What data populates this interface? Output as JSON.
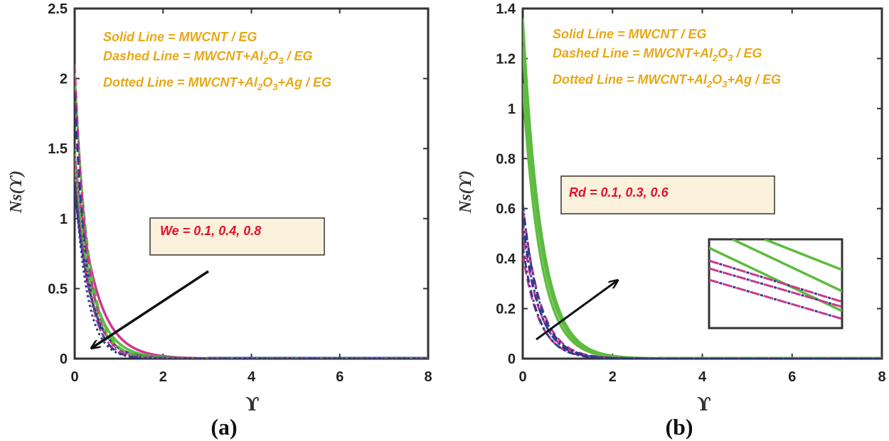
{
  "colors": {
    "solid": "#5DBB3F",
    "magenta": "#C8388E",
    "navy": "#2B3A8F",
    "legend_text": "#E8A817",
    "anno_text": "#E0112B",
    "anno_box_fill": "#FCF1DC",
    "arrow": "#111111"
  },
  "chart_data": [
    {
      "type": "line",
      "panel": "a",
      "caption": "(a)",
      "xlabel": "ϒ",
      "ylabel": "Ns(ϒ)",
      "xlim": [
        0,
        8
      ],
      "ylim": [
        0,
        2.5
      ],
      "x_ticks": [
        "0",
        "2",
        "4",
        "6",
        "8"
      ],
      "y_ticks": [
        "0",
        "0.5",
        "1",
        "1.5",
        "2",
        "2.5"
      ],
      "legend": {
        "solid": "Solid Line = MWCNT / EG",
        "dashed_prefix": "Dashed Line = MWCNT+Al",
        "dashed_sub1": "2",
        "dashed_mid": "O",
        "dashed_sub2": "3",
        "dashed_suffix": " / EG",
        "dotted_prefix": "Dotted Line = MWCNT+Al",
        "dotted_sub1": "2",
        "dotted_mid": "O",
        "dotted_sub2": "3",
        "dotted_suffix": "+Ag / EG"
      },
      "annotation": "We = 0.1, 0.4, 0.8",
      "series": [
        {
          "name": "MWCNT/EG We=0.1",
          "style": "solid",
          "color": "magenta",
          "y0": 1.45,
          "k": 2.2
        },
        {
          "name": "MWCNT/EG We=0.4",
          "style": "solid",
          "color": "green",
          "y0": 1.35,
          "k": 2.5
        },
        {
          "name": "MWCNT/EG We=0.8",
          "style": "solid",
          "color": "navy",
          "y0": 1.25,
          "k": 2.8
        },
        {
          "name": "MWCNT+Al2O3/EG We=0.1",
          "style": "dashed",
          "color": "green",
          "y0": 2.05,
          "k": 3.2
        },
        {
          "name": "MWCNT+Al2O3/EG We=0.4",
          "style": "dashed",
          "color": "magenta",
          "y0": 2.1,
          "k": 3.5
        },
        {
          "name": "MWCNT+Al2O3/EG We=0.8",
          "style": "dashed",
          "color": "navy",
          "y0": 1.9,
          "k": 3.8
        },
        {
          "name": "MWCNT+Al2O3+Ag/EG We=0.1",
          "style": "dotted",
          "color": "green",
          "y0": 1.5,
          "k": 3.0
        },
        {
          "name": "MWCNT+Al2O3+Ag/EG We=0.4",
          "style": "dotted",
          "color": "magenta",
          "y0": 1.4,
          "k": 3.3
        },
        {
          "name": "MWCNT+Al2O3+Ag/EG We=0.8",
          "style": "dotted",
          "color": "navy",
          "y0": 1.3,
          "k": 3.6
        }
      ]
    },
    {
      "type": "line",
      "panel": "b",
      "caption": "(b)",
      "xlabel": "ϒ",
      "ylabel": "Ns(ϒ)",
      "xlim": [
        0,
        8
      ],
      "ylim": [
        0,
        1.4
      ],
      "x_ticks": [
        "0",
        "2",
        "4",
        "6",
        "8"
      ],
      "y_ticks": [
        "0",
        "0.2",
        "0.4",
        "0.6",
        "0.8",
        "1",
        "1.2",
        "1.4"
      ],
      "legend": {
        "solid": "Solid Line = MWCNT / EG",
        "dashed_prefix": "Dashed Line = MWCNT+Al",
        "dashed_sub1": "2",
        "dashed_mid": "O",
        "dashed_sub2": "3",
        "dashed_suffix": " / EG",
        "dotted_prefix": "Dotted Line = MWCNT+Al",
        "dotted_sub1": "2",
        "dotted_mid": "O",
        "dotted_sub2": "3",
        "dotted_suffix": "+Ag / EG"
      },
      "annotation": "Rd = 0.1, 0.3, 0.6",
      "series": [
        {
          "name": "MWCNT/EG Rd=0.1",
          "style": "solid",
          "color": "green",
          "y0": 1.1,
          "k": 2.5
        },
        {
          "name": "MWCNT/EG Rd=0.3",
          "style": "solid",
          "color": "green",
          "y0": 1.25,
          "k": 2.45
        },
        {
          "name": "MWCNT/EG Rd=0.6",
          "style": "solid",
          "color": "green",
          "y0": 1.36,
          "k": 2.4
        },
        {
          "name": "MWCNT+Al2O3/EG Rd=0.1",
          "style": "dashed",
          "color": "magenta",
          "y0": 0.42,
          "k": 2.7
        },
        {
          "name": "MWCNT+Al2O3/EG Rd=0.3",
          "style": "dashed",
          "color": "magenta",
          "y0": 0.52,
          "k": 2.65
        },
        {
          "name": "MWCNT+Al2O3/EG Rd=0.6",
          "style": "dashed",
          "color": "magenta",
          "y0": 0.62,
          "k": 2.6
        },
        {
          "name": "MWCNT+Al2O3+Ag/EG Rd=0.1",
          "style": "dashdot",
          "color": "navy",
          "y0": 0.45,
          "k": 2.8
        },
        {
          "name": "MWCNT+Al2O3+Ag/EG Rd=0.3",
          "style": "dashdot",
          "color": "navy",
          "y0": 0.55,
          "k": 2.75
        },
        {
          "name": "MWCNT+Al2O3+Ag/EG Rd=0.6",
          "style": "dashdot",
          "color": "navy",
          "y0": 0.62,
          "k": 2.7
        }
      ]
    }
  ]
}
